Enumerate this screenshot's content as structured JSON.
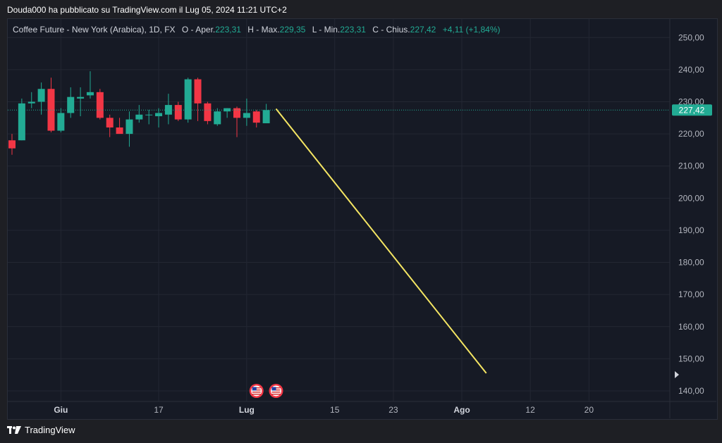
{
  "publisher_line": "Douda000 ha pubblicato su TradingView.com il Lug 05, 2024 11:21 UTC+2",
  "legend": {
    "symbol": "Coffee Future - New York (Arabica), 1D, FX",
    "open_label": "O - Aper.",
    "open_value": "223,31",
    "high_label": "H - Max.",
    "high_value": "229,35",
    "low_label": "L - Min.",
    "low_value": "223,31",
    "close_label": "C - Chius.",
    "close_value": "227,42",
    "change": "+4,11 (+1,84%)"
  },
  "brand": "TradingView",
  "colors": {
    "up": "#22ab94",
    "down": "#f23645",
    "drawing_line": "#f5e663",
    "price_line": "#22ab94"
  },
  "chart_data": {
    "type": "candlestick",
    "title": "",
    "xlabel": "",
    "ylabel": "",
    "ylim": [
      135,
      255
    ],
    "y_ticks": [
      140,
      150,
      160,
      170,
      180,
      190,
      200,
      210,
      220,
      230,
      240,
      250
    ],
    "y_tick_labels": [
      "140,00",
      "150,00",
      "160,00",
      "170,00",
      "180,00",
      "190,00",
      "200,00",
      "210,00",
      "220,00",
      "230,00",
      "240,00",
      "250,00"
    ],
    "x_tick_labels": [
      {
        "label": "Giu",
        "bold": true,
        "index": 5
      },
      {
        "label": "17",
        "bold": false,
        "index": 15
      },
      {
        "label": "Lug",
        "bold": true,
        "index": 24
      },
      {
        "label": "15",
        "bold": false,
        "index": 33
      },
      {
        "label": "23",
        "bold": false,
        "index": 39
      },
      {
        "label": "Ago",
        "bold": true,
        "index": 46
      },
      {
        "label": "12",
        "bold": false,
        "index": 53
      },
      {
        "label": "20",
        "bold": false,
        "index": 59
      }
    ],
    "last_price": 227.42,
    "last_price_label": "227,42",
    "candles": [
      {
        "o": 218.0,
        "h": 220.0,
        "l": 213.5,
        "c": 215.5
      },
      {
        "o": 218.0,
        "h": 231.0,
        "l": 218.0,
        "c": 229.5
      },
      {
        "o": 229.5,
        "h": 233.0,
        "l": 228.0,
        "c": 230.0
      },
      {
        "o": 230.0,
        "h": 236.0,
        "l": 226.0,
        "c": 234.0
      },
      {
        "o": 234.0,
        "h": 237.5,
        "l": 220.5,
        "c": 221.0
      },
      {
        "o": 221.0,
        "h": 228.0,
        "l": 220.5,
        "c": 226.5
      },
      {
        "o": 226.5,
        "h": 234.5,
        "l": 225.0,
        "c": 231.5
      },
      {
        "o": 231.0,
        "h": 234.5,
        "l": 225.5,
        "c": 231.5
      },
      {
        "o": 232.0,
        "h": 239.5,
        "l": 231.0,
        "c": 233.0
      },
      {
        "o": 233.0,
        "h": 234.0,
        "l": 224.5,
        "c": 225.0
      },
      {
        "o": 225.0,
        "h": 226.0,
        "l": 219.0,
        "c": 222.0
      },
      {
        "o": 222.0,
        "h": 225.0,
        "l": 220.5,
        "c": 220.0
      },
      {
        "o": 220.0,
        "h": 227.0,
        "l": 216.0,
        "c": 224.5
      },
      {
        "o": 224.5,
        "h": 229.0,
        "l": 223.5,
        "c": 226.0
      },
      {
        "o": 226.0,
        "h": 227.5,
        "l": 223.0,
        "c": 226.0
      },
      {
        "o": 225.5,
        "h": 228.0,
        "l": 222.0,
        "c": 226.5
      },
      {
        "o": 226.0,
        "h": 232.5,
        "l": 223.0,
        "c": 229.0
      },
      {
        "o": 229.0,
        "h": 230.0,
        "l": 224.0,
        "c": 224.5
      },
      {
        "o": 224.5,
        "h": 237.5,
        "l": 223.5,
        "c": 237.0
      },
      {
        "o": 237.0,
        "h": 237.5,
        "l": 224.0,
        "c": 229.5
      },
      {
        "o": 229.5,
        "h": 230.0,
        "l": 223.0,
        "c": 224.0
      },
      {
        "o": 223.0,
        "h": 228.0,
        "l": 222.5,
        "c": 227.0
      },
      {
        "o": 227.0,
        "h": 228.0,
        "l": 225.0,
        "c": 228.0
      },
      {
        "o": 228.0,
        "h": 228.5,
        "l": 219.0,
        "c": 225.0
      },
      {
        "o": 225.0,
        "h": 231.0,
        "l": 222.5,
        "c": 226.5
      },
      {
        "o": 227.0,
        "h": 227.5,
        "l": 222.0,
        "c": 223.5
      },
      {
        "o": 223.31,
        "h": 229.35,
        "l": 223.31,
        "c": 227.42
      }
    ],
    "trendline": {
      "start_index": 27,
      "start_value": 227.8,
      "end_index": 48.5,
      "end_value": 145.5
    },
    "event_markers": [
      {
        "index": 25
      },
      {
        "index": 27
      }
    ]
  }
}
